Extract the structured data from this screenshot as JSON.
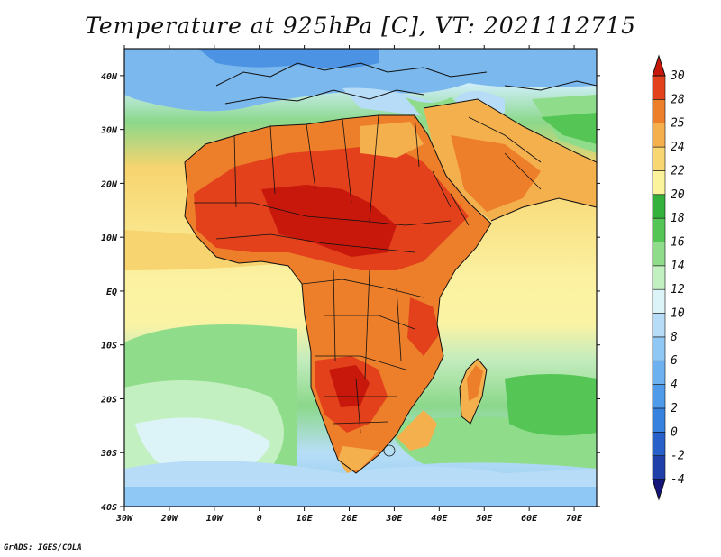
{
  "title": "Temperature at 925hPa [C], VT: 2021112715",
  "credit": "GrADS: IGES/COLA",
  "map": {
    "lon_range": [
      -30,
      75
    ],
    "lat_range": [
      -40,
      45
    ],
    "x_ticks": [
      "30W",
      "20W",
      "10W",
      "0",
      "10E",
      "20E",
      "30E",
      "40E",
      "50E",
      "60E",
      "70E"
    ],
    "y_ticks": [
      "40S",
      "30S",
      "20S",
      "10S",
      "EQ",
      "10N",
      "20N",
      "30N",
      "40N"
    ],
    "boundaries": "coastlines and country borders (black)"
  },
  "colorbar": {
    "labels": [
      "-4",
      "-2",
      "0",
      "2",
      "4",
      "6",
      "8",
      "10",
      "12",
      "14",
      "16",
      "18",
      "20",
      "22",
      "24",
      "25",
      "28",
      "30"
    ],
    "colors": [
      "#15147a",
      "#1f3fa9",
      "#2660c8",
      "#3782df",
      "#4f9ae9",
      "#6db1f0",
      "#90c8f5",
      "#b6dcf8",
      "#dcf3f7",
      "#c3f0c0",
      "#8fdc8a",
      "#55c655",
      "#34b13c",
      "#fbf49c",
      "#f8d773",
      "#f5b04e",
      "#ee7f2a",
      "#e2411c",
      "#c8180c"
    ]
  }
}
